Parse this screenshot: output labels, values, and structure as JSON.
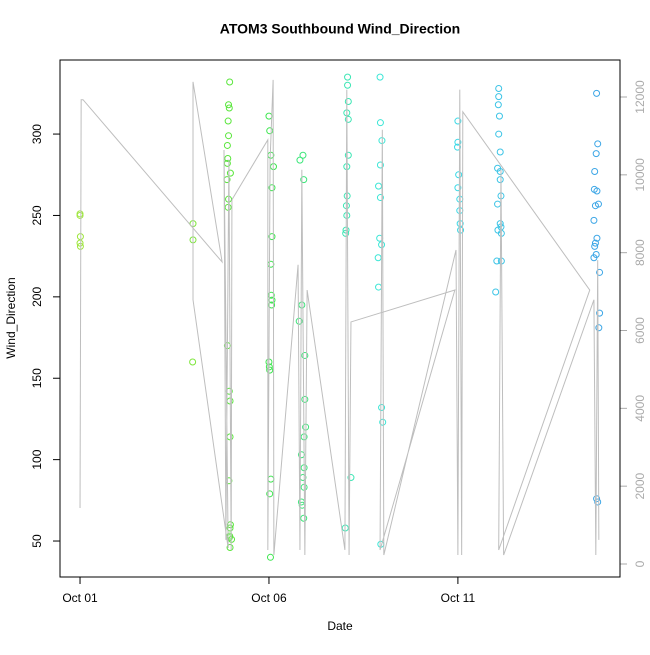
{
  "chart_data": {
    "type": "scatter",
    "title": "ATOM3 Southbound Wind_Direction",
    "x_label": "Date",
    "y_label": "Wind_Direction",
    "xlim": [
      0.47,
      15.29
    ],
    "ylim": [
      27.9,
      345.5
    ],
    "y2lim": [
      -334,
      12951
    ],
    "xticks": [
      {
        "value": 1,
        "label": "Oct 01"
      },
      {
        "value": 6,
        "label": "Oct 06"
      },
      {
        "value": 11,
        "label": "Oct 11"
      }
    ],
    "yticks": [
      50,
      100,
      150,
      200,
      250,
      300
    ],
    "y2ticks": [
      0,
      2000,
      4000,
      6000,
      8000,
      10000,
      12000
    ],
    "y2_color": "#aaaaaa",
    "series": [
      {
        "style": "points",
        "color": "#9ee63c",
        "x": [
          1.0,
          1.0,
          1.01,
          1.0,
          1.01
        ],
        "values": [
          251,
          250,
          237,
          233,
          231
        ]
      },
      {
        "style": "points",
        "color": "#7ee63c",
        "x": [
          3.99,
          3.99,
          3.98
        ],
        "values": [
          245,
          235,
          160
        ]
      },
      {
        "style": "points",
        "color": "#5ae63c",
        "x": [
          4.96,
          4.93,
          4.95,
          4.92,
          4.93,
          4.9,
          4.91,
          4.9,
          4.98,
          4.89,
          4.93,
          4.92,
          4.9,
          4.95,
          4.97,
          4.97,
          4.94,
          4.98,
          4.97,
          4.96,
          4.95,
          5.01,
          4.97
        ],
        "values": [
          332,
          318,
          316,
          308,
          299,
          293,
          285,
          282,
          276,
          272,
          260,
          255,
          170,
          142,
          136,
          114,
          87,
          60,
          58,
          53,
          52,
          51,
          46
        ]
      },
      {
        "style": "points",
        "color": "#3ee650",
        "x": [
          6.0,
          6.02,
          6.05,
          6.12,
          6.08,
          6.08,
          6.05,
          6.06,
          6.08,
          6.07,
          6.0,
          6.01,
          6.02,
          6.05,
          6.02,
          6.04
        ],
        "values": [
          311,
          302,
          287,
          280,
          267,
          237,
          220,
          201,
          198,
          195,
          160,
          157,
          155,
          88,
          79,
          40
        ]
      },
      {
        "style": "points",
        "color": "#3ce67a",
        "x": [
          6.9,
          6.82,
          6.92,
          6.87,
          6.8,
          6.95,
          6.95,
          6.97,
          6.93,
          6.86,
          6.93,
          6.9,
          6.93,
          6.86,
          6.88,
          6.92
        ],
        "values": [
          287,
          284,
          272,
          195,
          185,
          164,
          137,
          120,
          114,
          103,
          95,
          89,
          83,
          74,
          72,
          64
        ]
      },
      {
        "style": "points",
        "color": "#3ce6b4",
        "x": [
          8.08,
          8.08,
          8.1,
          8.06,
          8.1,
          8.1,
          8.06,
          8.07,
          8.05,
          8.06,
          8.04,
          8.03,
          8.02,
          8.17
        ],
        "values": [
          335,
          330,
          320,
          313,
          309,
          287,
          280,
          262,
          256,
          250,
          241,
          239,
          58,
          89
        ]
      },
      {
        "style": "points",
        "color": "#3ce6d6",
        "x": [
          8.94,
          8.95,
          8.99,
          8.95,
          8.9,
          8.95,
          8.93,
          8.98,
          8.89,
          8.9,
          8.98,
          9.01,
          8.96
        ],
        "values": [
          335,
          307,
          296,
          281,
          268,
          261,
          236,
          232,
          224,
          206,
          132,
          123,
          48
        ]
      },
      {
        "style": "points",
        "color": "#3cd9e6",
        "x": [
          11.0,
          11.0,
          10.99,
          11.02,
          11.0,
          11.05,
          11.05,
          11.06,
          11.07
        ],
        "values": [
          308,
          295,
          292,
          275,
          267,
          260,
          253,
          245,
          241
        ]
      },
      {
        "style": "points",
        "color": "#3cc4e6",
        "x": [
          12.08,
          12.08,
          12.07,
          12.1,
          12.08,
          12.12,
          12.05,
          12.12,
          12.12,
          12.14,
          12.05,
          12.12,
          12.14,
          12.06,
          12.15,
          12.03,
          12.15,
          12.0
        ],
        "values": [
          328,
          323,
          318,
          311,
          300,
          289,
          279,
          277,
          272,
          262,
          257,
          245,
          243,
          241,
          239,
          222,
          222,
          203
        ]
      },
      {
        "style": "points",
        "color": "#3ca6e6",
        "x": [
          14.67,
          14.7,
          14.66,
          14.62,
          14.61,
          14.68,
          14.72,
          14.64,
          14.6,
          14.68,
          14.64,
          14.62,
          14.66,
          14.6,
          14.75,
          14.75,
          14.73,
          14.67,
          14.7
        ],
        "values": [
          325,
          294,
          288,
          277,
          266,
          265,
          257,
          256,
          247,
          236,
          233,
          231,
          226,
          224,
          215,
          190,
          181,
          76,
          74
        ]
      },
      {
        "style": "line",
        "axis": "y2",
        "color": "#bebebe",
        "x": [
          1.0,
          1.03,
          1.08,
          4.76,
          3.99,
          3.99,
          4.92,
          4.81,
          4.86,
          4.94,
          5.0,
          5.02,
          5.97,
          5.97,
          6.03,
          6.11,
          6.13,
          6.77,
          6.82,
          6.87,
          6.95,
          7.01,
          8.01,
          8.06,
          8.12,
          8.17,
          10.92,
          8.94,
          9.0,
          9.04,
          10.95,
          11.0,
          11.05,
          11.1,
          11.13,
          14.49,
          12.08,
          12.14,
          12.21,
          14.6,
          14.65,
          14.7,
          14.73
        ],
        "values": [
          1440,
          11930,
          11930,
          7760,
          12390,
          6790,
          410,
          10640,
          620,
          10390,
          360,
          9360,
          10900,
          360,
          10390,
          12440,
          230,
          7690,
          360,
          10130,
          230,
          7040,
          360,
          12190,
          230,
          6220,
          7040,
          360,
          11160,
          230,
          8070,
          230,
          12190,
          230,
          11620,
          7040,
          360,
          10130,
          230,
          6790,
          230,
          7810,
          620
        ]
      }
    ]
  }
}
